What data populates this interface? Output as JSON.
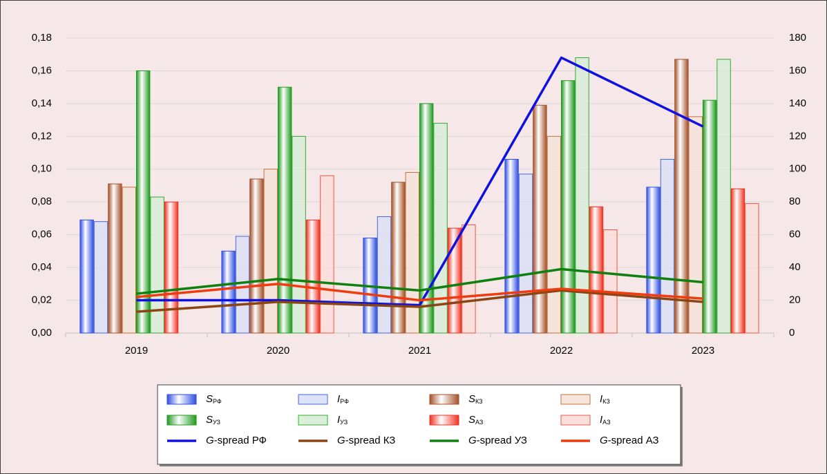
{
  "chart_data": {
    "type": "bar",
    "categories": [
      "2019",
      "2020",
      "2021",
      "2022",
      "2023"
    ],
    "ylim": [
      0,
      0.18
    ],
    "yticks": [
      {
        "value": 0,
        "label": "0,00"
      },
      {
        "value": 0.02,
        "label": "0,02"
      },
      {
        "value": 0.04,
        "label": "0,04"
      },
      {
        "value": 0.06,
        "label": "0,06"
      },
      {
        "value": 0.08,
        "label": "0,08"
      },
      {
        "value": 0.1,
        "label": "0,10"
      },
      {
        "value": 0.12,
        "label": "0,12"
      },
      {
        "value": 0.14,
        "label": "0,14"
      },
      {
        "value": 0.16,
        "label": "0,16"
      },
      {
        "value": 0.18,
        "label": "0,18"
      }
    ],
    "y2lim": [
      0,
      180
    ],
    "y2ticks": [
      0,
      20,
      40,
      60,
      80,
      100,
      120,
      140,
      160,
      180
    ],
    "grid": true,
    "legend": "bottom",
    "series": [
      {
        "name": "SРФ",
        "type": "bar",
        "style": "solid",
        "color": "#2f4fe0",
        "values": [
          0.069,
          0.05,
          0.058,
          0.106,
          0.089
        ]
      },
      {
        "name": "IРФ",
        "type": "bar",
        "style": "hollow",
        "color": "#4466dd",
        "values": [
          0.068,
          0.059,
          0.071,
          0.097,
          0.106
        ]
      },
      {
        "name": "SКЗ",
        "type": "bar",
        "style": "solid",
        "color": "#a4512a",
        "values": [
          0.091,
          0.094,
          0.092,
          0.139,
          0.167
        ]
      },
      {
        "name": "IКЗ",
        "type": "bar",
        "style": "hollow",
        "color": "#c8703c",
        "values": [
          0.089,
          0.1,
          0.098,
          0.12,
          0.132
        ]
      },
      {
        "name": "SУЗ",
        "type": "bar",
        "style": "solid",
        "color": "#1f9a1f",
        "values": [
          0.16,
          0.15,
          0.14,
          0.154,
          0.142
        ]
      },
      {
        "name": "IУЗ",
        "type": "bar",
        "style": "hollow",
        "color": "#33aa33",
        "values": [
          0.083,
          0.12,
          0.128,
          0.168,
          0.167
        ]
      },
      {
        "name": "SАЗ",
        "type": "bar",
        "style": "solid",
        "color": "#ee3322",
        "values": [
          0.08,
          0.069,
          0.064,
          0.077,
          0.088
        ]
      },
      {
        "name": "IАЗ",
        "type": "bar",
        "style": "hollow",
        "color": "#ee5544",
        "values": [
          null,
          0.096,
          0.066,
          0.063,
          0.079
        ]
      },
      {
        "name": "G-spread РФ",
        "type": "line",
        "axis": "y2",
        "color": "#1010e0",
        "values": [
          20,
          20,
          17,
          168,
          126
        ]
      },
      {
        "name": "G-spread КЗ",
        "type": "line",
        "axis": "y2",
        "color": "#8b4513",
        "values": [
          13,
          19,
          16,
          26,
          19
        ]
      },
      {
        "name": "G-spread УЗ",
        "type": "line",
        "axis": "y2",
        "color": "#108010",
        "values": [
          24,
          33,
          26,
          39,
          31
        ]
      },
      {
        "name": "G-spread АЗ",
        "type": "line",
        "axis": "y2",
        "color": "#ee3c10",
        "values": [
          22,
          30,
          20,
          27,
          21
        ]
      }
    ]
  }
}
